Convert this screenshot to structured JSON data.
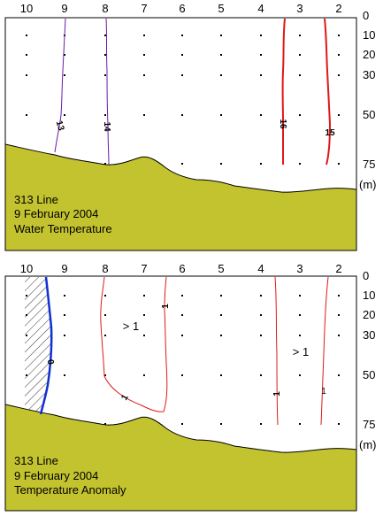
{
  "chart_data": [
    {
      "type": "contour",
      "station_labels": [
        "10",
        "9",
        "8",
        "7",
        "6",
        "5",
        "4",
        "3",
        "2"
      ],
      "depth_labels": [
        "0",
        "10",
        "20",
        "30",
        "50",
        "75"
      ],
      "depth_unit": "(m)",
      "caption": [
        "313 Line",
        "9 February 2004",
        "Water Temperature"
      ],
      "contour_labels": [
        "13",
        "14",
        "16",
        "15"
      ],
      "annotations": [],
      "colors": {
        "bottom_fill": "#c3c330",
        "cold_contour": "#6a1aa8",
        "warm_contour": "#e01818"
      }
    },
    {
      "type": "contour",
      "station_labels": [
        "10",
        "9",
        "8",
        "7",
        "6",
        "5",
        "4",
        "3",
        "2"
      ],
      "depth_labels": [
        "0",
        "10",
        "20",
        "30",
        "50",
        "75"
      ],
      "depth_unit": "(m)",
      "caption": [
        "313 Line",
        "9 February 2004",
        "Temperature Anomaly"
      ],
      "contour_labels": [
        "0",
        "1",
        "1",
        "1",
        "1"
      ],
      "annotations": [
        "> 1",
        "> 1"
      ],
      "colors": {
        "bottom_fill": "#c3c330",
        "zero_contour": "#1030d0",
        "positive_contour": "#e01818"
      }
    }
  ]
}
